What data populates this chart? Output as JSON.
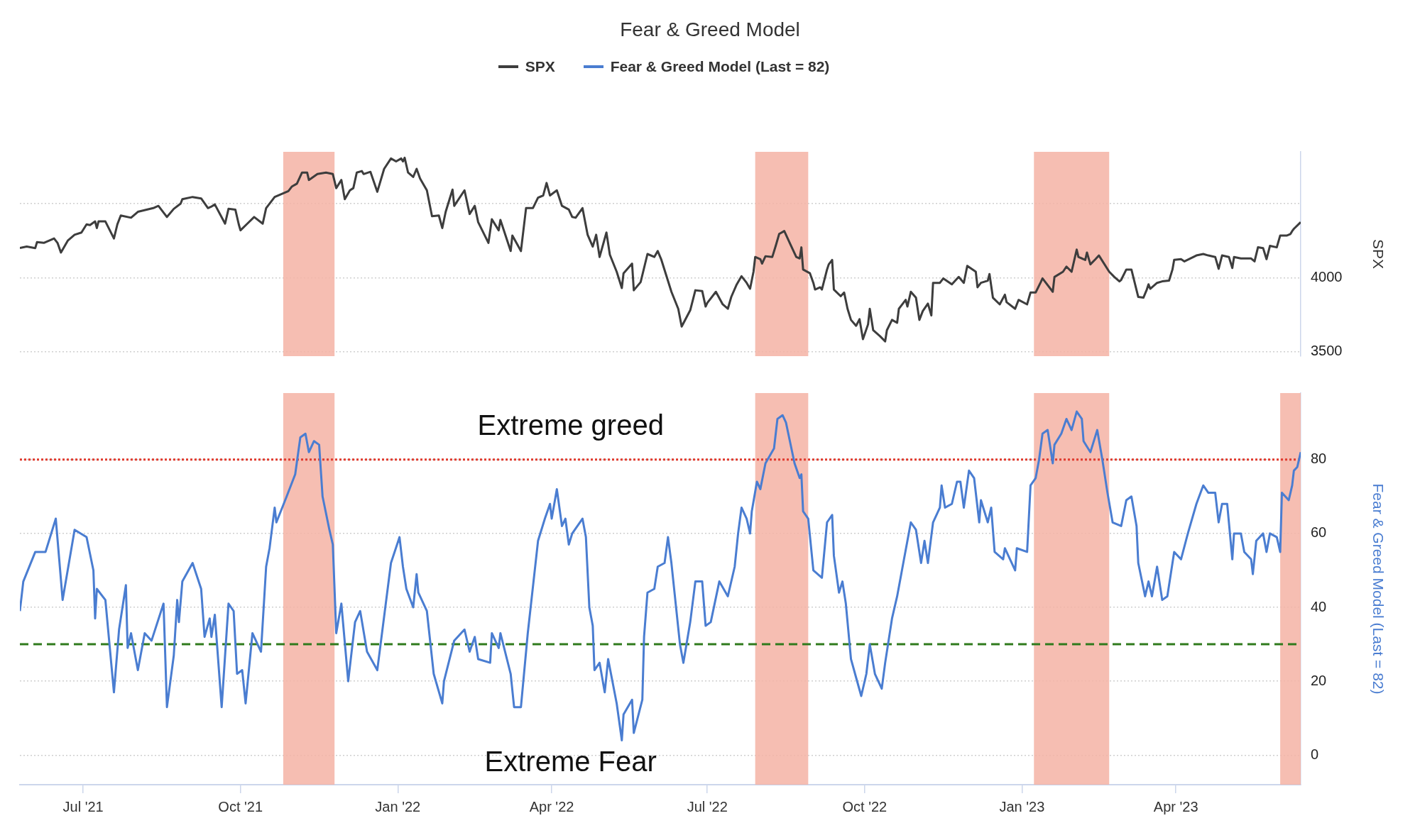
{
  "chart_data": [
    {
      "type": "line",
      "title": "Fear & Greed Model",
      "ylabel": "SPX",
      "legend": "top",
      "grid": "y",
      "marker": "none",
      "line_style": "solid",
      "tick_labels": "y",
      "xlim": [
        "2021-05-25",
        "2023-06-13"
      ],
      "ylim": [
        3470,
        4850
      ],
      "yticks": [
        3500,
        4000,
        {
          "value": 4500,
          "label": null
        }
      ],
      "bands": [
        {
          "axis": "x",
          "from": "2021-10-26",
          "to": "2021-11-25",
          "color": "#f4b3a4"
        },
        {
          "axis": "x",
          "from": "2022-07-29",
          "to": "2022-08-29",
          "color": "#f4b3a4"
        },
        {
          "axis": "x",
          "from": "2023-01-08",
          "to": "2023-02-21",
          "color": "#f4b3a4"
        }
      ],
      "series": [
        {
          "name": "SPX",
          "color": "#3d3d3d",
          "x": [
            "2021-05-25",
            "2021-05-29",
            "2021-06-03",
            "2021-06-04",
            "2021-06-08",
            "2021-06-14",
            "2021-06-16",
            "2021-06-18",
            "2021-06-22",
            "2021-06-26",
            "2021-06-30",
            "2021-07-03",
            "2021-07-05",
            "2021-07-08",
            "2021-07-09",
            "2021-07-10",
            "2021-07-14",
            "2021-07-19",
            "2021-07-21",
            "2021-07-23",
            "2021-07-29",
            "2021-08-02",
            "2021-08-11",
            "2021-08-14",
            "2021-08-19",
            "2021-08-23",
            "2021-08-27",
            "2021-08-28",
            "2021-09-03",
            "2021-09-08",
            "2021-09-12",
            "2021-09-14",
            "2021-09-16",
            "2021-09-22",
            "2021-09-24",
            "2021-09-28",
            "2021-09-30",
            "2021-10-01",
            "2021-10-05",
            "2021-10-09",
            "2021-10-14",
            "2021-10-16",
            "2021-10-21",
            "2021-10-29",
            "2021-10-31",
            "2021-11-03",
            "2021-11-06",
            "2021-11-09",
            "2021-11-10",
            "2021-11-15",
            "2021-11-20",
            "2021-11-24",
            "2021-11-26",
            "2021-11-29",
            "2021-12-01",
            "2021-12-04",
            "2021-12-06",
            "2021-12-08",
            "2021-12-11",
            "2021-12-12",
            "2021-12-16",
            "2021-12-20",
            "2021-12-24",
            "2021-12-28",
            "2021-12-31",
            "2022-01-03",
            "2022-01-04",
            "2022-01-05",
            "2022-01-07",
            "2022-01-10",
            "2022-01-12",
            "2022-01-14",
            "2022-01-18",
            "2022-01-21",
            "2022-01-25",
            "2022-01-27",
            "2022-01-29",
            "2022-02-02",
            "2022-02-03",
            "2022-02-09",
            "2022-02-12",
            "2022-02-15",
            "2022-02-17",
            "2022-02-23",
            "2022-02-25",
            "2022-03-01",
            "2022-03-02",
            "2022-03-08",
            "2022-03-09",
            "2022-03-14",
            "2022-03-17",
            "2022-03-21",
            "2022-03-24",
            "2022-03-27",
            "2022-03-29",
            "2022-03-31",
            "2022-04-04",
            "2022-04-07",
            "2022-04-11",
            "2022-04-13",
            "2022-04-15",
            "2022-04-19",
            "2022-04-22",
            "2022-04-25",
            "2022-04-27",
            "2022-04-29",
            "2022-05-03",
            "2022-05-05",
            "2022-05-09",
            "2022-05-12",
            "2022-05-13",
            "2022-05-18",
            "2022-05-19",
            "2022-05-23",
            "2022-05-27",
            "2022-05-31",
            "2022-06-02",
            "2022-06-04",
            "2022-06-10",
            "2022-06-14",
            "2022-06-16",
            "2022-06-21",
            "2022-06-24",
            "2022-06-28",
            "2022-06-30",
            "2022-07-01",
            "2022-07-06",
            "2022-07-10",
            "2022-07-13",
            "2022-07-15",
            "2022-07-18",
            "2022-07-21",
            "2022-07-24",
            "2022-07-26",
            "2022-07-28",
            "2022-07-29",
            "2022-08-01",
            "2022-08-02",
            "2022-08-04",
            "2022-08-08",
            "2022-08-10",
            "2022-08-12",
            "2022-08-15",
            "2022-08-19",
            "2022-08-22",
            "2022-08-24",
            "2022-08-25",
            "2022-08-26",
            "2022-08-30",
            "2022-09-01",
            "2022-09-02",
            "2022-09-05",
            "2022-09-06",
            "2022-09-09",
            "2022-09-10",
            "2022-09-12",
            "2022-09-13",
            "2022-09-17",
            "2022-09-19",
            "2022-09-21",
            "2022-09-23",
            "2022-09-26",
            "2022-09-28",
            "2022-09-30",
            "2022-10-03",
            "2022-10-04",
            "2022-10-06",
            "2022-10-10",
            "2022-10-13",
            "2022-10-14",
            "2022-10-17",
            "2022-10-20",
            "2022-10-21",
            "2022-10-25",
            "2022-10-26",
            "2022-10-28",
            "2022-10-31",
            "2022-11-02",
            "2022-11-04",
            "2022-11-07",
            "2022-11-09",
            "2022-11-10",
            "2022-11-14",
            "2022-11-16",
            "2022-11-21",
            "2022-11-25",
            "2022-11-28",
            "2022-11-30",
            "2022-12-05",
            "2022-12-06",
            "2022-12-08",
            "2022-12-12",
            "2022-12-13",
            "2022-12-15",
            "2022-12-19",
            "2022-12-22",
            "2022-12-23",
            "2022-12-28",
            "2022-12-30",
            "2023-01-04",
            "2023-01-06",
            "2023-01-09",
            "2023-01-12",
            "2023-01-13",
            "2023-01-19",
            "2023-01-20",
            "2023-01-25",
            "2023-01-27",
            "2023-01-30",
            "2023-02-02",
            "2023-02-03",
            "2023-02-07",
            "2023-02-08",
            "2023-02-10",
            "2023-02-13",
            "2023-02-15",
            "2023-02-21",
            "2023-02-24",
            "2023-02-27",
            "2023-02-28",
            "2023-03-03",
            "2023-03-06",
            "2023-03-10",
            "2023-03-13",
            "2023-03-15",
            "2023-03-16",
            "2023-03-17",
            "2023-03-21",
            "2023-03-24",
            "2023-03-28",
            "2023-03-30",
            "2023-03-31",
            "2023-04-04",
            "2023-04-06",
            "2023-04-13",
            "2023-04-17",
            "2023-04-20",
            "2023-04-24",
            "2023-04-26",
            "2023-04-28",
            "2023-05-02",
            "2023-05-04",
            "2023-05-05",
            "2023-05-09",
            "2023-05-12",
            "2023-05-15",
            "2023-05-17",
            "2023-05-19",
            "2023-05-22",
            "2023-05-24",
            "2023-05-26",
            "2023-05-30",
            "2023-06-01",
            "2023-06-05",
            "2023-06-07",
            "2023-06-08",
            "2023-06-09",
            "2023-06-13"
          ],
          "values": [
            4200,
            4210,
            4200,
            4240,
            4235,
            4265,
            4235,
            4170,
            4250,
            4290,
            4305,
            4360,
            4355,
            4380,
            4335,
            4380,
            4380,
            4265,
            4360,
            4420,
            4405,
            4445,
            4470,
            4485,
            4410,
            4465,
            4500,
            4530,
            4545,
            4535,
            4470,
            4480,
            4495,
            4365,
            4465,
            4460,
            4360,
            4320,
            4365,
            4410,
            4365,
            4470,
            4545,
            4585,
            4615,
            4635,
            4710,
            4710,
            4660,
            4700,
            4710,
            4700,
            4605,
            4660,
            4530,
            4590,
            4605,
            4710,
            4720,
            4700,
            4715,
            4580,
            4735,
            4805,
            4785,
            4805,
            4785,
            4810,
            4710,
            4680,
            4735,
            4670,
            4590,
            4415,
            4420,
            4335,
            4445,
            4595,
            4485,
            4590,
            4430,
            4485,
            4375,
            4235,
            4395,
            4320,
            4390,
            4180,
            4285,
            4180,
            4470,
            4470,
            4540,
            4555,
            4640,
            4555,
            4590,
            4485,
            4460,
            4410,
            4405,
            4470,
            4290,
            4210,
            4290,
            4140,
            4305,
            4155,
            4040,
            3930,
            4030,
            4095,
            3915,
            3970,
            4160,
            4140,
            4180,
            4125,
            3905,
            3790,
            3670,
            3780,
            3915,
            3910,
            3805,
            3830,
            3905,
            3820,
            3790,
            3870,
            3950,
            4010,
            3965,
            3925,
            4040,
            4140,
            4125,
            4095,
            4145,
            4140,
            4215,
            4295,
            4315,
            4215,
            4140,
            4130,
            4205,
            4055,
            4030,
            3965,
            3920,
            3935,
            3920,
            4055,
            4090,
            4120,
            3920,
            3875,
            3900,
            3790,
            3715,
            3675,
            3720,
            3585,
            3685,
            3790,
            3645,
            3605,
            3570,
            3645,
            3715,
            3695,
            3790,
            3850,
            3805,
            3905,
            3865,
            3715,
            3775,
            3825,
            3745,
            3965,
            3965,
            3995,
            3955,
            4005,
            3965,
            4080,
            4040,
            3935,
            3965,
            3980,
            4025,
            3865,
            3820,
            3885,
            3835,
            3790,
            3850,
            3820,
            3900,
            3900,
            3970,
            3995,
            3905,
            4005,
            4040,
            4075,
            4040,
            4190,
            4140,
            4120,
            4170,
            4090,
            4125,
            4150,
            4040,
            4005,
            3975,
            3985,
            4055,
            4055,
            3870,
            3865,
            3920,
            3955,
            3925,
            3965,
            3975,
            3980,
            4055,
            4120,
            4125,
            4110,
            4150,
            4160,
            4150,
            4140,
            4060,
            4150,
            4140,
            4065,
            4140,
            4130,
            4130,
            4130,
            4110,
            4205,
            4200,
            4125,
            4215,
            4205,
            4285,
            4285,
            4295,
            4315,
            4330,
            4375
          ]
        }
      ]
    },
    {
      "type": "line",
      "ylabel": "Fear & Greed Model (Last = 82)",
      "legend": "top",
      "grid": "y",
      "marker": "none",
      "line_style": "solid",
      "xlim": [
        "2021-05-25",
        "2023-06-13"
      ],
      "xticks": [
        {
          "value": "2021-07-01",
          "label": "Jul '21"
        },
        {
          "value": "2021-10-01",
          "label": "Oct '21"
        },
        {
          "value": "2022-01-01",
          "label": "Jan '22"
        },
        {
          "value": "2022-04-01",
          "label": "Apr '22"
        },
        {
          "value": "2022-07-01",
          "label": "Jul '22"
        },
        {
          "value": "2022-10-01",
          "label": "Oct '22"
        },
        {
          "value": "2023-01-01",
          "label": "Jan '23"
        },
        {
          "value": "2023-04-01",
          "label": "Apr '23"
        }
      ],
      "ylim": [
        -8,
        98
      ],
      "yticks": [
        0,
        20,
        40,
        60,
        80
      ],
      "ref_lines": [
        {
          "axis": "y",
          "value": 80,
          "color": "#e03a2e",
          "line_style": "dotted"
        },
        {
          "axis": "y",
          "value": 30,
          "color": "#2f7a1c",
          "line_style": "dashed"
        }
      ],
      "bands": [
        {
          "axis": "x",
          "from": "2021-10-26",
          "to": "2021-11-25",
          "color": "#f4b3a4"
        },
        {
          "axis": "x",
          "from": "2022-07-29",
          "to": "2022-08-29",
          "color": "#f4b3a4"
        },
        {
          "axis": "x",
          "from": "2023-01-08",
          "to": "2023-02-21",
          "color": "#f4b3a4"
        },
        {
          "axis": "x",
          "from": "2023-06-01",
          "to": "2023-06-13",
          "color": "#f4b3a4"
        }
      ],
      "annotations": [
        "Extreme greed",
        "Extreme Fear"
      ],
      "series": [
        {
          "name": "Fear & Greed Model (Last = 82)",
          "color": "#4a7dd1",
          "x": [
            "2021-05-25",
            "2021-05-27",
            "2021-06-03",
            "2021-06-09",
            "2021-06-15",
            "2021-06-19",
            "2021-06-26",
            "2021-07-03",
            "2021-07-07",
            "2021-07-08",
            "2021-07-09",
            "2021-07-14",
            "2021-07-19",
            "2021-07-22",
            "2021-07-26",
            "2021-07-27",
            "2021-07-29",
            "2021-08-02",
            "2021-08-06",
            "2021-08-10",
            "2021-08-17",
            "2021-08-19",
            "2021-08-23",
            "2021-08-25",
            "2021-08-26",
            "2021-08-28",
            "2021-09-03",
            "2021-09-08",
            "2021-09-10",
            "2021-09-13",
            "2021-09-14",
            "2021-09-16",
            "2021-09-20",
            "2021-09-24",
            "2021-09-27",
            "2021-09-29",
            "2021-10-02",
            "2021-10-04",
            "2021-10-08",
            "2021-10-13",
            "2021-10-16",
            "2021-10-18",
            "2021-10-21",
            "2021-10-22",
            "2021-10-28",
            "2021-11-02",
            "2021-11-05",
            "2021-11-08",
            "2021-11-10",
            "2021-11-13",
            "2021-11-16",
            "2021-11-18",
            "2021-11-22",
            "2021-11-24",
            "2021-11-26",
            "2021-11-29",
            "2021-12-03",
            "2021-12-07",
            "2021-12-10",
            "2021-12-14",
            "2021-12-20",
            "2021-12-28",
            "2022-01-02",
            "2022-01-04",
            "2022-01-06",
            "2022-01-10",
            "2022-01-12",
            "2022-01-13",
            "2022-01-18",
            "2022-01-22",
            "2022-01-27",
            "2022-01-28",
            "2022-02-03",
            "2022-02-09",
            "2022-02-12",
            "2022-02-15",
            "2022-02-17",
            "2022-02-24",
            "2022-02-25",
            "2022-03-01",
            "2022-03-02",
            "2022-03-08",
            "2022-03-10",
            "2022-03-14",
            "2022-03-18",
            "2022-03-24",
            "2022-03-28",
            "2022-03-31",
            "2022-04-01",
            "2022-04-04",
            "2022-04-07",
            "2022-04-09",
            "2022-04-11",
            "2022-04-13",
            "2022-04-19",
            "2022-04-21",
            "2022-04-23",
            "2022-04-25",
            "2022-04-26",
            "2022-04-29",
            "2022-05-02",
            "2022-05-04",
            "2022-05-09",
            "2022-05-12",
            "2022-05-13",
            "2022-05-18",
            "2022-05-19",
            "2022-05-24",
            "2022-05-25",
            "2022-05-27",
            "2022-05-31",
            "2022-06-02",
            "2022-06-06",
            "2022-06-08",
            "2022-06-10",
            "2022-06-15",
            "2022-06-17",
            "2022-06-21",
            "2022-06-24",
            "2022-06-28",
            "2022-06-30",
            "2022-07-03",
            "2022-07-08",
            "2022-07-13",
            "2022-07-17",
            "2022-07-19",
            "2022-07-21",
            "2022-07-24",
            "2022-07-26",
            "2022-07-27",
            "2022-07-30",
            "2022-08-01",
            "2022-08-04",
            "2022-08-09",
            "2022-08-11",
            "2022-08-14",
            "2022-08-16",
            "2022-08-21",
            "2022-08-24",
            "2022-08-25",
            "2022-08-26",
            "2022-08-29",
            "2022-09-01",
            "2022-09-06",
            "2022-09-09",
            "2022-09-12",
            "2022-09-13",
            "2022-09-16",
            "2022-09-18",
            "2022-09-20",
            "2022-09-23",
            "2022-09-26",
            "2022-09-29",
            "2022-10-02",
            "2022-10-04",
            "2022-10-07",
            "2022-10-11",
            "2022-10-13",
            "2022-10-17",
            "2022-10-20",
            "2022-10-24",
            "2022-10-28",
            "2022-10-31",
            "2022-11-03",
            "2022-11-05",
            "2022-11-07",
            "2022-11-10",
            "2022-11-14",
            "2022-11-15",
            "2022-11-17",
            "2022-11-21",
            "2022-11-24",
            "2022-11-26",
            "2022-11-28",
            "2022-12-01",
            "2022-12-04",
            "2022-12-07",
            "2022-12-08",
            "2022-12-12",
            "2022-12-14",
            "2022-12-16",
            "2022-12-21",
            "2022-12-22",
            "2022-12-28",
            "2022-12-29",
            "2023-01-04",
            "2023-01-06",
            "2023-01-09",
            "2023-01-11",
            "2023-01-13",
            "2023-01-16",
            "2023-01-19",
            "2023-01-20",
            "2023-01-24",
            "2023-01-27",
            "2023-01-30",
            "2023-02-02",
            "2023-02-05",
            "2023-02-06",
            "2023-02-10",
            "2023-02-14",
            "2023-02-17",
            "2023-02-20",
            "2023-02-23",
            "2023-02-28",
            "2023-03-03",
            "2023-03-06",
            "2023-03-09",
            "2023-03-10",
            "2023-03-14",
            "2023-03-16",
            "2023-03-18",
            "2023-03-21",
            "2023-03-24",
            "2023-03-27",
            "2023-03-31",
            "2023-04-04",
            "2023-04-08",
            "2023-04-13",
            "2023-04-17",
            "2023-04-20",
            "2023-04-24",
            "2023-04-26",
            "2023-04-28",
            "2023-05-01",
            "2023-05-04",
            "2023-05-05",
            "2023-05-09",
            "2023-05-11",
            "2023-05-15",
            "2023-05-16",
            "2023-05-18",
            "2023-05-22",
            "2023-05-24",
            "2023-05-26",
            "2023-05-30",
            "2023-06-01",
            "2023-06-02",
            "2023-06-06",
            "2023-06-08",
            "2023-06-09",
            "2023-06-11",
            "2023-06-13"
          ],
          "values": [
            39,
            47,
            55,
            55,
            64,
            42,
            61,
            59,
            50,
            37,
            45,
            42,
            17,
            34,
            46,
            29,
            33,
            23,
            33,
            31,
            41,
            13,
            27,
            42,
            36,
            47,
            52,
            45,
            32,
            37,
            32,
            38,
            13,
            41,
            39,
            22,
            23,
            14,
            33,
            28,
            51,
            56,
            67,
            63,
            70,
            76,
            86,
            87,
            82,
            85,
            84,
            70,
            61,
            57,
            33,
            41,
            20,
            36,
            39,
            28,
            23,
            52,
            59,
            51,
            45,
            40,
            49,
            44,
            39,
            22,
            14,
            20,
            31,
            34,
            28,
            32,
            26,
            25,
            33,
            29,
            33,
            22,
            13,
            13,
            33,
            58,
            64,
            68,
            64,
            72,
            62,
            64,
            57,
            60,
            64,
            59,
            40,
            35,
            23,
            25,
            17,
            26,
            14,
            4,
            11,
            15,
            6,
            15,
            32,
            44,
            45,
            51,
            52,
            59,
            52,
            30,
            25,
            36,
            47,
            47,
            35,
            36,
            47,
            43,
            51,
            60,
            67,
            64,
            60,
            66,
            74,
            72,
            79,
            83,
            91,
            92,
            90,
            79,
            75,
            76,
            66,
            64,
            50,
            48,
            63,
            65,
            54,
            44,
            47,
            41,
            26,
            21,
            16,
            22,
            30,
            22,
            18,
            25,
            37,
            43,
            53,
            63,
            61,
            52,
            58,
            52,
            63,
            67,
            73,
            67,
            68,
            74,
            74,
            67,
            77,
            75,
            63,
            69,
            63,
            67,
            55,
            53,
            56,
            50,
            56,
            55,
            73,
            75,
            80,
            87,
            88,
            79,
            84,
            87,
            91,
            88,
            93,
            91,
            85,
            82,
            88,
            80,
            71,
            63,
            62,
            69,
            70,
            62,
            52,
            43,
            47,
            43,
            51,
            42,
            43,
            55,
            53,
            60,
            68,
            73,
            71,
            71,
            63,
            68,
            68,
            53,
            60,
            60,
            55,
            53,
            49,
            58,
            60,
            55,
            60,
            59,
            55,
            71,
            69,
            73,
            77,
            78,
            82
          ]
        }
      ]
    }
  ]
}
